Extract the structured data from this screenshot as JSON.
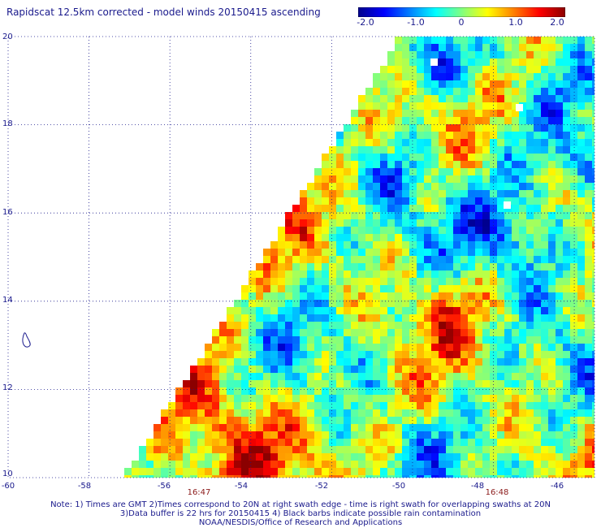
{
  "title": "Rapidscat 12.5km corrected - model winds 20150415 ascending",
  "colorbar": {
    "ticks": [
      "-2.0",
      "-1.0",
      "0",
      "1.0",
      "2.0"
    ],
    "min": -2.0,
    "max": 2.0,
    "colors": [
      "#00008b",
      "#0000ff",
      "#0080ff",
      "#00ffff",
      "#80ff80",
      "#ffff00",
      "#ff8000",
      "#ff0000",
      "#8b0000"
    ]
  },
  "axes": {
    "lat_labels": [
      "20",
      "18",
      "16",
      "14",
      "12",
      "10"
    ],
    "lon_labels": [
      "-60",
      "-58",
      "-56",
      "-54",
      "-52",
      "-50",
      "-48",
      "-46"
    ],
    "lat_range": [
      10,
      20
    ],
    "lon_range": [
      -60,
      -45.5
    ]
  },
  "times": [
    {
      "label": "16:47",
      "lon": -54.5
    },
    {
      "label": "16:48",
      "lon": -47.2
    }
  ],
  "notes": {
    "line1": "Note: 1) Times are GMT 2)Times correspond to 20N at right swath edge - time is right swath for overlapping swaths at 20N",
    "line2": "3)Data buffer is 22 hrs for 20150415 4) Black barbs indicate possible rain contamination",
    "line3": "NOAA/NESDIS/Office of Research and Applications"
  }
}
